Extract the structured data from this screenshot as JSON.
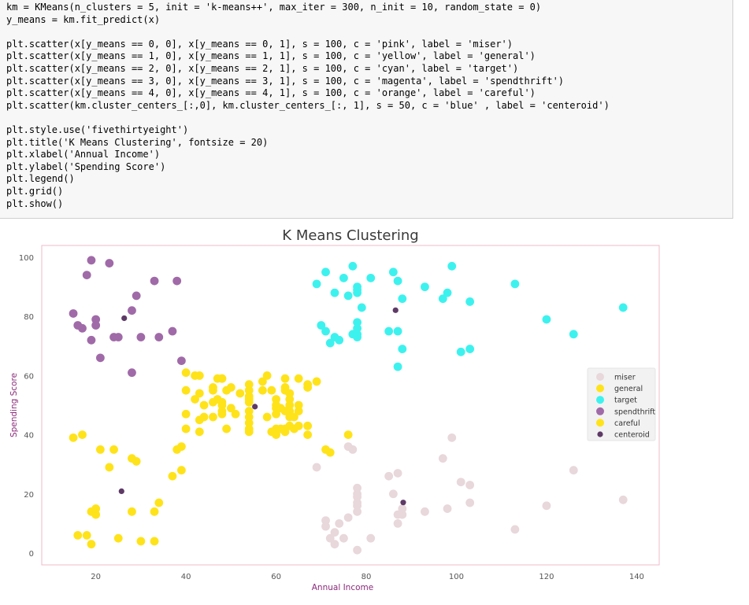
{
  "code_cell": {
    "lines": [
      "km = KMeans(n_clusters = 5, init = 'k-means++', max_iter = 300, n_init = 10, random_state = 0)",
      "y_means = km.fit_predict(x)",
      "",
      "plt.scatter(x[y_means == 0, 0], x[y_means == 0, 1], s = 100, c = 'pink', label = 'miser')",
      "plt.scatter(x[y_means == 1, 0], x[y_means == 1, 1], s = 100, c = 'yellow', label = 'general')",
      "plt.scatter(x[y_means == 2, 0], x[y_means == 2, 1], s = 100, c = 'cyan', label = 'target')",
      "plt.scatter(x[y_means == 3, 0], x[y_means == 3, 1], s = 100, c = 'magenta', label = 'spendthrift')",
      "plt.scatter(x[y_means == 4, 0], x[y_means == 4, 1], s = 100, c = 'orange', label = 'careful')",
      "plt.scatter(km.cluster_centers_[:,0], km.cluster_centers_[:, 1], s = 50, c = 'blue' , label = 'centeroid')",
      "",
      "plt.style.use('fivethirtyeight')",
      "plt.title('K Means Clustering', fontsize = 20)",
      "plt.xlabel('Annual Income')",
      "plt.ylabel('Spending Score')",
      "plt.legend()",
      "plt.grid()",
      "plt.show()"
    ]
  },
  "chart_data": {
    "type": "scatter",
    "title": "K Means Clustering",
    "xlabel": "Annual Income",
    "ylabel": "Spending Score",
    "xlim": [
      8,
      145
    ],
    "ylim": [
      -4,
      104
    ],
    "xticks": [
      20,
      40,
      60,
      80,
      100,
      120,
      140
    ],
    "yticks": [
      0,
      20,
      40,
      60,
      80,
      100
    ],
    "grid": false,
    "legend_position": "center-right",
    "colors": {
      "title": "#3a3a3a",
      "axis_label": "#8a2a7a",
      "tick_label": "#555555",
      "frame": "#f0b8c8"
    },
    "series": [
      {
        "name": "miser",
        "color": "#e8d7db",
        "points": [
          [
            69,
            29
          ],
          [
            71,
            11
          ],
          [
            71,
            9
          ],
          [
            72,
            5
          ],
          [
            73,
            7
          ],
          [
            73,
            3
          ],
          [
            74,
            10
          ],
          [
            75,
            5
          ],
          [
            76,
            12
          ],
          [
            76,
            36
          ],
          [
            77,
            35
          ],
          [
            78,
            22
          ],
          [
            78,
            20
          ],
          [
            78,
            17
          ],
          [
            78,
            16
          ],
          [
            78,
            1
          ],
          [
            78,
            14
          ],
          [
            78,
            19
          ],
          [
            81,
            5
          ],
          [
            85,
            26
          ],
          [
            86,
            20
          ],
          [
            87,
            27
          ],
          [
            87,
            13
          ],
          [
            87,
            10
          ],
          [
            88,
            13
          ],
          [
            88,
            15
          ],
          [
            93,
            14
          ],
          [
            97,
            32
          ],
          [
            98,
            15
          ],
          [
            99,
            39
          ],
          [
            101,
            24
          ],
          [
            103,
            17
          ],
          [
            103,
            23
          ],
          [
            113,
            8
          ],
          [
            120,
            16
          ],
          [
            126,
            28
          ],
          [
            137,
            18
          ]
        ]
      },
      {
        "name": "general",
        "color": "#ffe31a",
        "points": [
          [
            15,
            39
          ],
          [
            16,
            6
          ],
          [
            17,
            40
          ],
          [
            18,
            6
          ],
          [
            19,
            3
          ],
          [
            19,
            14
          ],
          [
            20,
            15
          ],
          [
            20,
            13
          ],
          [
            21,
            35
          ],
          [
            23,
            29
          ],
          [
            24,
            35
          ],
          [
            25,
            5
          ],
          [
            28,
            14
          ],
          [
            28,
            32
          ],
          [
            29,
            31
          ],
          [
            30,
            4
          ],
          [
            33,
            4
          ],
          [
            33,
            14
          ],
          [
            34,
            17
          ],
          [
            37,
            26
          ],
          [
            38,
            35
          ],
          [
            39,
            28
          ],
          [
            39,
            36
          ],
          [
            40,
            61
          ],
          [
            40,
            55
          ],
          [
            40,
            47
          ],
          [
            40,
            42
          ],
          [
            42,
            52
          ],
          [
            42,
            60
          ],
          [
            43,
            54
          ],
          [
            43,
            60
          ],
          [
            43,
            45
          ],
          [
            43,
            41
          ],
          [
            44,
            50
          ],
          [
            44,
            46
          ],
          [
            46,
            51
          ],
          [
            46,
            46
          ],
          [
            46,
            56
          ],
          [
            46,
            55
          ],
          [
            47,
            52
          ],
          [
            47,
            59
          ],
          [
            48,
            51
          ],
          [
            48,
            59
          ],
          [
            48,
            50
          ],
          [
            48,
            48
          ],
          [
            48,
            59
          ],
          [
            48,
            47
          ],
          [
            49,
            55
          ],
          [
            49,
            42
          ],
          [
            50,
            49
          ],
          [
            50,
            56
          ],
          [
            51,
            47
          ],
          [
            52,
            54
          ],
          [
            54,
            53
          ],
          [
            54,
            48
          ],
          [
            54,
            52
          ],
          [
            54,
            42
          ],
          [
            54,
            51
          ],
          [
            54,
            55
          ],
          [
            54,
            41
          ],
          [
            54,
            44
          ],
          [
            54,
            57
          ],
          [
            54,
            46
          ],
          [
            57,
            58
          ],
          [
            57,
            55
          ],
          [
            58,
            60
          ],
          [
            58,
            46
          ],
          [
            59,
            55
          ],
          [
            59,
            41
          ],
          [
            60,
            49
          ],
          [
            60,
            40
          ],
          [
            60,
            42
          ],
          [
            60,
            52
          ],
          [
            60,
            47
          ],
          [
            60,
            50
          ],
          [
            61,
            42
          ],
          [
            61,
            49
          ],
          [
            62,
            41
          ],
          [
            62,
            48
          ],
          [
            62,
            59
          ],
          [
            62,
            55
          ],
          [
            62,
            56
          ],
          [
            62,
            42
          ],
          [
            63,
            50
          ],
          [
            63,
            46
          ],
          [
            63,
            43
          ],
          [
            63,
            48
          ],
          [
            63,
            52
          ],
          [
            63,
            54
          ],
          [
            64,
            42
          ],
          [
            64,
            46
          ],
          [
            65,
            48
          ],
          [
            65,
            50
          ],
          [
            65,
            43
          ],
          [
            65,
            59
          ],
          [
            67,
            43
          ],
          [
            67,
            57
          ],
          [
            67,
            56
          ],
          [
            67,
            40
          ],
          [
            69,
            58
          ],
          [
            71,
            35
          ],
          [
            72,
            34
          ],
          [
            76,
            40
          ]
        ]
      },
      {
        "name": "target",
        "color": "#3df2ee",
        "points": [
          [
            69,
            91
          ],
          [
            70,
            77
          ],
          [
            71,
            95
          ],
          [
            71,
            75
          ],
          [
            72,
            71
          ],
          [
            73,
            88
          ],
          [
            73,
            73
          ],
          [
            74,
            72
          ],
          [
            75,
            93
          ],
          [
            76,
            87
          ],
          [
            77,
            74
          ],
          [
            77,
            97
          ],
          [
            78,
            74
          ],
          [
            78,
            90
          ],
          [
            78,
            88
          ],
          [
            78,
            76
          ],
          [
            78,
            89
          ],
          [
            78,
            78
          ],
          [
            78,
            73
          ],
          [
            79,
            83
          ],
          [
            81,
            93
          ],
          [
            85,
            75
          ],
          [
            86,
            95
          ],
          [
            87,
            63
          ],
          [
            87,
            75
          ],
          [
            87,
            92
          ],
          [
            88,
            86
          ],
          [
            88,
            69
          ],
          [
            93,
            90
          ],
          [
            97,
            86
          ],
          [
            98,
            88
          ],
          [
            99,
            97
          ],
          [
            101,
            68
          ],
          [
            103,
            85
          ],
          [
            103,
            69
          ],
          [
            113,
            91
          ],
          [
            120,
            79
          ],
          [
            126,
            74
          ],
          [
            137,
            83
          ]
        ]
      },
      {
        "name": "spendthrift",
        "color": "#a06aa8",
        "points": [
          [
            15,
            81
          ],
          [
            16,
            77
          ],
          [
            17,
            76
          ],
          [
            18,
            94
          ],
          [
            19,
            99
          ],
          [
            19,
            72
          ],
          [
            20,
            77
          ],
          [
            20,
            79
          ],
          [
            21,
            66
          ],
          [
            23,
            98
          ],
          [
            24,
            73
          ],
          [
            25,
            73
          ],
          [
            28,
            82
          ],
          [
            28,
            61
          ],
          [
            29,
            87
          ],
          [
            30,
            73
          ],
          [
            33,
            92
          ],
          [
            34,
            73
          ],
          [
            37,
            75
          ],
          [
            38,
            92
          ],
          [
            39,
            65
          ]
        ]
      },
      {
        "name": "careful",
        "color": "#ffe31a",
        "points": []
      },
      {
        "name": "centeroid",
        "color": "#5e3a66",
        "points": [
          [
            26.3,
            79.4
          ],
          [
            25.7,
            20.9
          ],
          [
            55.3,
            49.5
          ],
          [
            86.5,
            82.1
          ],
          [
            88.2,
            17.1
          ]
        ]
      }
    ]
  }
}
